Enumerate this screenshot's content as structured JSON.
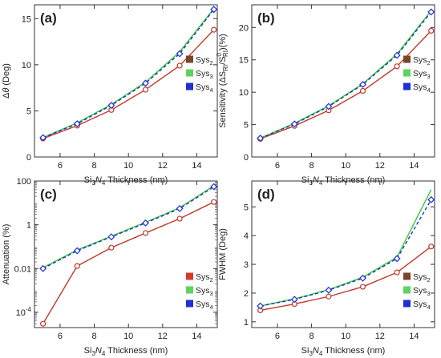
{
  "chart_data": [
    {
      "type": "line",
      "panel_label": "(a)",
      "x": [
        5,
        7,
        9,
        11,
        13,
        15
      ],
      "xlabel": {
        "pre": "Si",
        "s1": "3",
        "mid": "N",
        "s2": "4",
        "post": " Thickness (nm)"
      },
      "ylabel": "Δθ (Deg)",
      "xlim": [
        4.5,
        15.2
      ],
      "ylim": [
        0,
        16.5
      ],
      "xticks": [
        6,
        8,
        10,
        12,
        14
      ],
      "yticks": [
        0,
        5,
        10,
        15
      ],
      "yscale": "linear",
      "legend_position": "right",
      "series": [
        {
          "name": {
            "base": "Sys",
            "sub": "2"
          },
          "color": "#c0392b",
          "legend_color": "#7a4528",
          "values": [
            2.0,
            3.4,
            5.1,
            7.3,
            9.9,
            13.8
          ]
        },
        {
          "name": {
            "base": "Sys",
            "sub": "3"
          },
          "color": "#33cc33",
          "legend_color": "#5fd35f",
          "values": [
            2.1,
            3.7,
            5.7,
            8.1,
            11.4,
            16.1
          ]
        },
        {
          "name": {
            "base": "Sys",
            "sub": "4"
          },
          "color": "#1f2fd0",
          "legend_color": "#1f2fd0",
          "dashed": true,
          "values": [
            2.1,
            3.6,
            5.6,
            8.0,
            11.2,
            16.0
          ]
        }
      ]
    },
    {
      "type": "line",
      "panel_label": "(b)",
      "x": [
        5,
        7,
        9,
        11,
        13,
        15
      ],
      "xlabel": {
        "pre": "Si",
        "s1": "3",
        "mid": "N",
        "s2": "4",
        "post": " Thickness (nm)"
      },
      "ylabel": "Sensitivity (ΔS_RI/S⁰_RI)(%)",
      "xlim": [
        4.5,
        15.2
      ],
      "ylim": [
        0,
        23.5
      ],
      "xticks": [
        6,
        8,
        10,
        12,
        14
      ],
      "yticks": [
        0,
        5,
        10,
        15,
        20
      ],
      "yscale": "linear",
      "legend_position": "right",
      "series": [
        {
          "name": {
            "base": "Sys",
            "sub": "2"
          },
          "color": "#c0392b",
          "legend_color": "#7a4528",
          "values": [
            2.8,
            4.8,
            7.2,
            10.2,
            14.0,
            19.5
          ]
        },
        {
          "name": {
            "base": "Sys",
            "sub": "3"
          },
          "color": "#33cc33",
          "legend_color": "#5fd35f",
          "values": [
            2.9,
            5.2,
            7.9,
            11.3,
            15.9,
            22.6
          ]
        },
        {
          "name": {
            "base": "Sys",
            "sub": "4"
          },
          "color": "#1f2fd0",
          "legend_color": "#1f2fd0",
          "dashed": true,
          "values": [
            2.9,
            5.1,
            7.8,
            11.2,
            15.7,
            22.4
          ]
        }
      ]
    },
    {
      "type": "line",
      "panel_label": "(c)",
      "x": [
        5,
        7,
        9,
        11,
        13,
        15
      ],
      "xlabel": {
        "pre": "Si",
        "s1": "3",
        "mid": "N",
        "s2": "4",
        "post": " Thickness (nm)"
      },
      "ylabel": "Attenuation (%)",
      "xlim": [
        4.5,
        15.2
      ],
      "ylim": [
        2e-05,
        100
      ],
      "xticks": [
        6,
        8,
        10,
        12,
        14
      ],
      "yticks": [
        {
          "value": 0.0001,
          "label": "10",
          "sup": "-4"
        },
        {
          "value": 0.01,
          "label": "0.01",
          "sup": ""
        },
        {
          "value": 1,
          "label": "1",
          "sup": ""
        },
        {
          "value": 100,
          "label": "100",
          "sup": ""
        }
      ],
      "yscale": "log",
      "legend_position": "bottom-right",
      "series": [
        {
          "name": {
            "base": "Sys",
            "sub": "2"
          },
          "color": "#c0392b",
          "legend_color": "#d43a2b",
          "values": [
            3e-05,
            0.013,
            0.09,
            0.42,
            1.9,
            11
          ]
        },
        {
          "name": {
            "base": "Sys",
            "sub": "3"
          },
          "color": "#33cc33",
          "legend_color": "#5fd35f",
          "values": [
            0.011,
            0.07,
            0.3,
            1.3,
            6.0,
            60
          ]
        },
        {
          "name": {
            "base": "Sys",
            "sub": "4"
          },
          "color": "#1f2fd0",
          "legend_color": "#1f2fd0",
          "dashed": true,
          "values": [
            0.01,
            0.065,
            0.28,
            1.2,
            5.5,
            55
          ]
        }
      ]
    },
    {
      "type": "line",
      "panel_label": "(d)",
      "x": [
        5,
        7,
        9,
        11,
        13,
        15
      ],
      "xlabel": {
        "pre": "Si",
        "s1": "3",
        "mid": "N",
        "s2": "4",
        "post": " Thickness (nm)"
      },
      "ylabel": "FWHM (Deg)",
      "xlim": [
        4.5,
        15.2
      ],
      "ylim": [
        0.8,
        5.9
      ],
      "xticks": [
        6,
        8,
        10,
        12,
        14
      ],
      "yticks": [
        1,
        2,
        3,
        4,
        5
      ],
      "yscale": "linear",
      "legend_position": "bottom-right",
      "series": [
        {
          "name": {
            "base": "Sys",
            "sub": "2"
          },
          "color": "#c0392b",
          "legend_color": "#7a4528",
          "values": [
            1.4,
            1.62,
            1.88,
            2.22,
            2.72,
            3.62
          ]
        },
        {
          "name": {
            "base": "Sys",
            "sub": "3"
          },
          "color": "#33cc33",
          "legend_color": "#5fd35f",
          "values": [
            1.55,
            1.8,
            2.12,
            2.55,
            3.25,
            5.6
          ]
        },
        {
          "name": {
            "base": "Sys",
            "sub": "4"
          },
          "color": "#1f2fd0",
          "legend_color": "#1f2fd0",
          "dashed": true,
          "values": [
            1.55,
            1.78,
            2.1,
            2.52,
            3.2,
            5.25
          ]
        }
      ]
    }
  ]
}
